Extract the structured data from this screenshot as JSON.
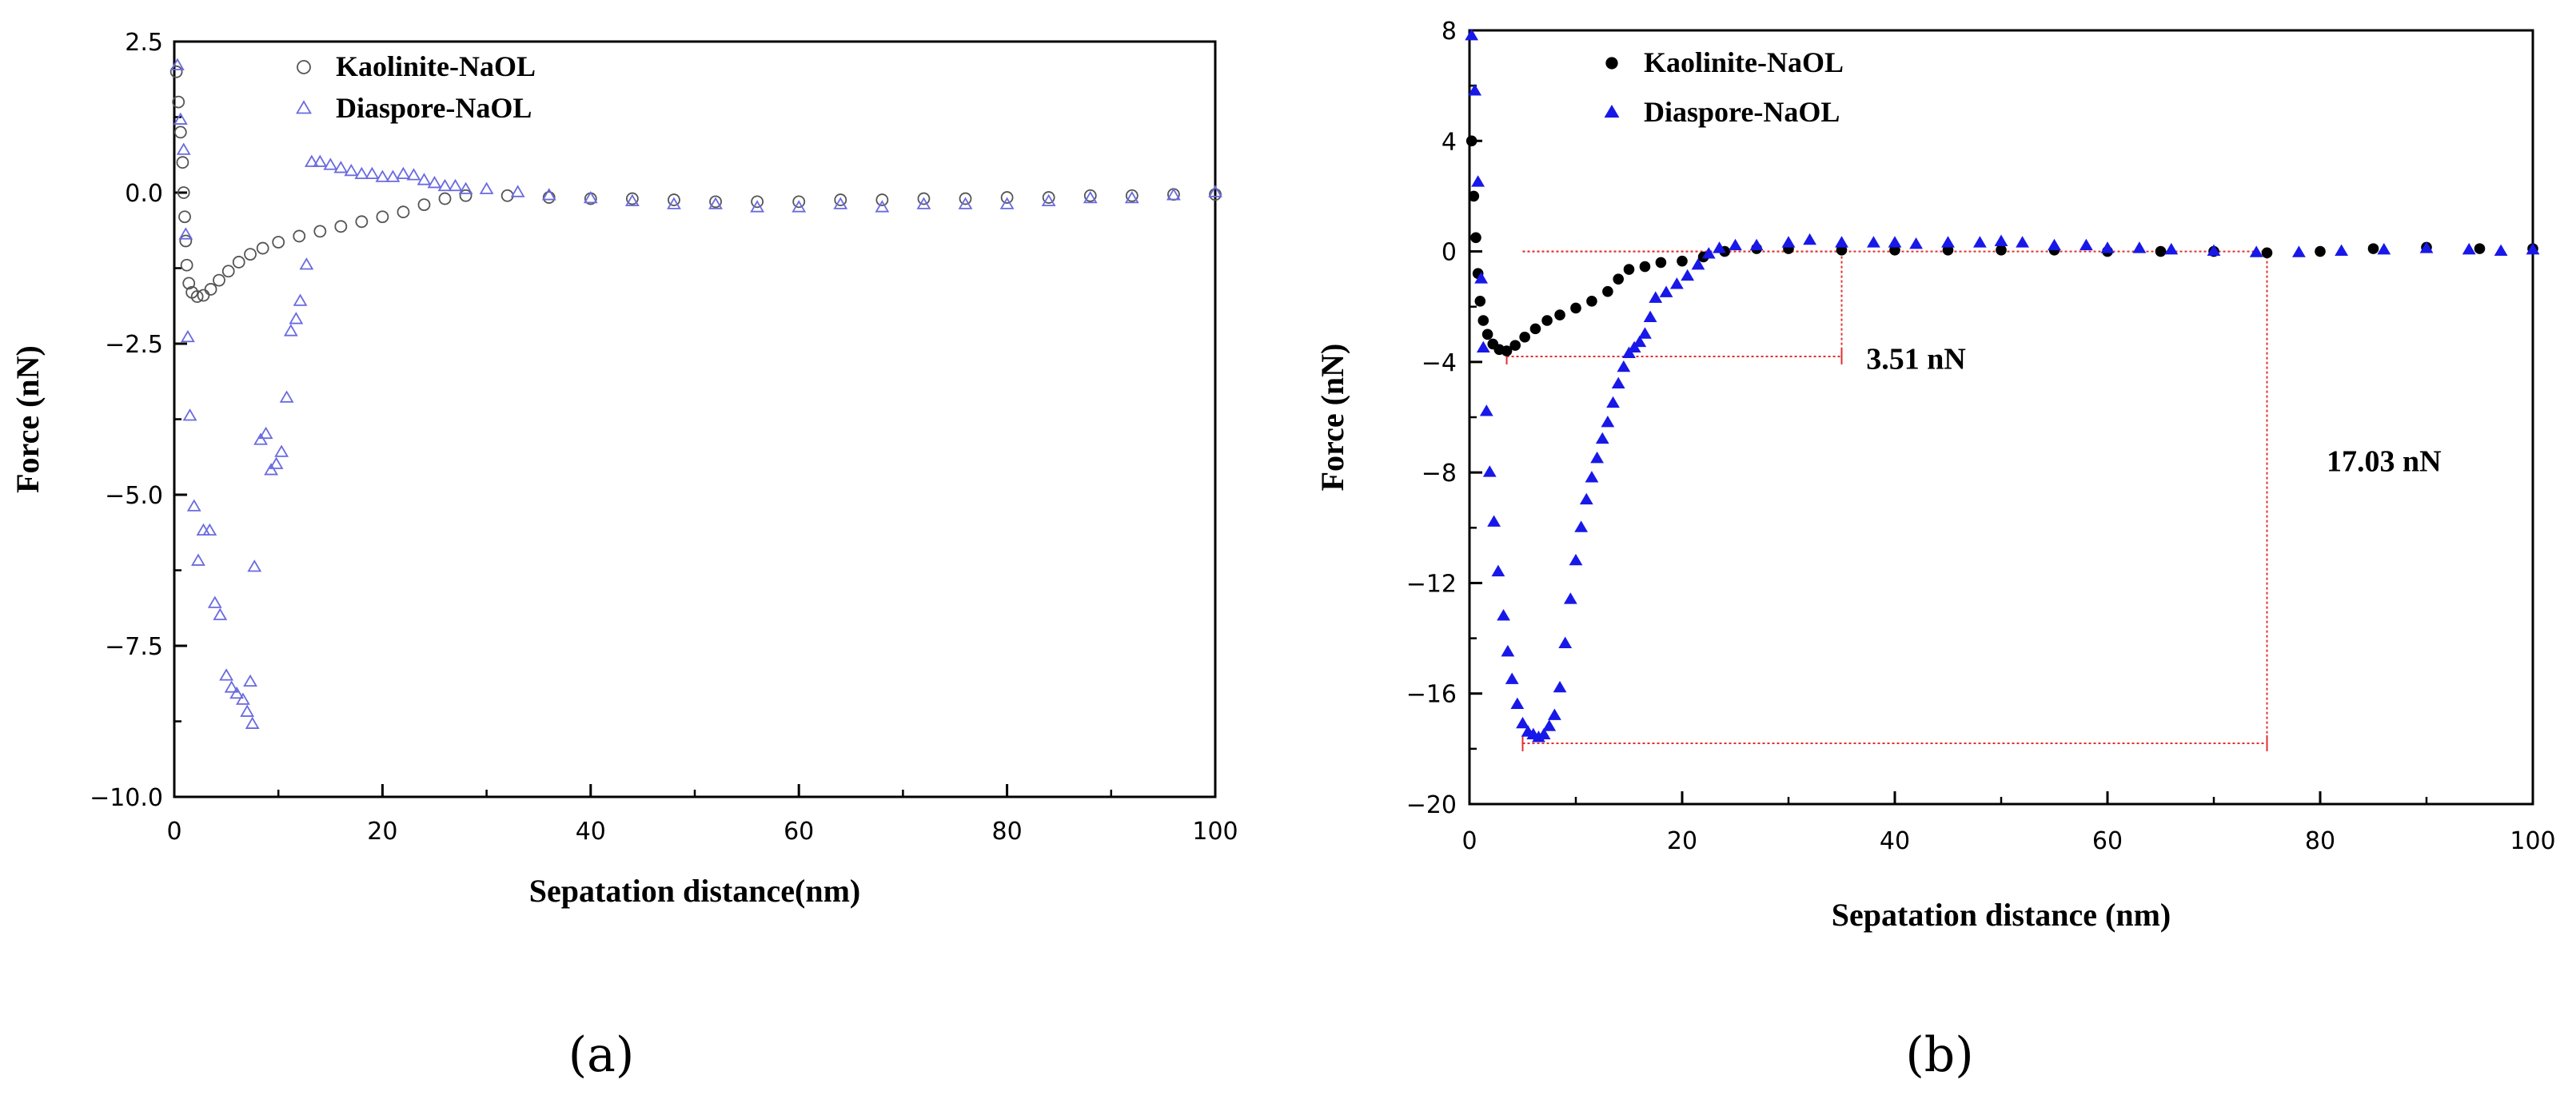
{
  "figure": {
    "panel_labels": [
      "(a)",
      "(b)"
    ]
  },
  "chart_data": [
    {
      "panel": "(a)",
      "type": "scatter",
      "title": "",
      "xlabel": "Sepatation distance(nm)",
      "ylabel": "Force (nN)",
      "xlim": [
        0,
        100
      ],
      "ylim": [
        -10,
        2.5
      ],
      "xticks": [
        0,
        20,
        40,
        60,
        80,
        100
      ],
      "xtick_labels": [
        "0",
        "20",
        "40",
        "60",
        "80",
        "100"
      ],
      "yticks": [
        2.5,
        0,
        -2.5,
        -5,
        -7.5,
        -10
      ],
      "ytick_labels": [
        "2.5",
        "0.0",
        "−2.5",
        "−5.0",
        "−7.5",
        "−10.0"
      ],
      "legend_position": "top-left",
      "series": [
        {
          "name": "Kaolinite-NaOL",
          "marker": "open-circle",
          "color": "#555555",
          "points": [
            [
              0.2,
              2.0
            ],
            [
              0.4,
              1.5
            ],
            [
              0.6,
              1.0
            ],
            [
              0.8,
              0.5
            ],
            [
              0.9,
              0.0
            ],
            [
              1.0,
              -0.4
            ],
            [
              1.1,
              -0.8
            ],
            [
              1.2,
              -1.2
            ],
            [
              1.4,
              -1.5
            ],
            [
              1.7,
              -1.65
            ],
            [
              2.2,
              -1.72
            ],
            [
              2.8,
              -1.7
            ],
            [
              3.5,
              -1.6
            ],
            [
              4.3,
              -1.45
            ],
            [
              5.2,
              -1.3
            ],
            [
              6.2,
              -1.15
            ],
            [
              7.3,
              -1.02
            ],
            [
              8.5,
              -0.92
            ],
            [
              10,
              -0.82
            ],
            [
              12,
              -0.72
            ],
            [
              14,
              -0.64
            ],
            [
              16,
              -0.56
            ],
            [
              18,
              -0.48
            ],
            [
              20,
              -0.4
            ],
            [
              22,
              -0.32
            ],
            [
              24,
              -0.2
            ],
            [
              26,
              -0.1
            ],
            [
              28,
              -0.05
            ],
            [
              32,
              -0.05
            ],
            [
              36,
              -0.08
            ],
            [
              40,
              -0.1
            ],
            [
              44,
              -0.1
            ],
            [
              48,
              -0.12
            ],
            [
              52,
              -0.15
            ],
            [
              56,
              -0.15
            ],
            [
              60,
              -0.15
            ],
            [
              64,
              -0.12
            ],
            [
              68,
              -0.12
            ],
            [
              72,
              -0.1
            ],
            [
              76,
              -0.1
            ],
            [
              80,
              -0.08
            ],
            [
              84,
              -0.08
            ],
            [
              88,
              -0.05
            ],
            [
              92,
              -0.05
            ],
            [
              96,
              -0.03
            ],
            [
              100,
              -0.03
            ]
          ]
        },
        {
          "name": "Diaspore-NaOL",
          "marker": "open-triangle",
          "color": "#6a6ae0",
          "points": [
            [
              0.3,
              2.1
            ],
            [
              0.6,
              1.2
            ],
            [
              0.9,
              0.7
            ],
            [
              1.1,
              -0.7
            ],
            [
              1.3,
              -2.4
            ],
            [
              1.5,
              -3.7
            ],
            [
              1.9,
              -5.2
            ],
            [
              2.3,
              -6.1
            ],
            [
              2.8,
              -5.6
            ],
            [
              3.4,
              -5.6
            ],
            [
              3.9,
              -6.8
            ],
            [
              4.4,
              -7.0
            ],
            [
              5.0,
              -8.0
            ],
            [
              5.5,
              -8.2
            ],
            [
              6.0,
              -8.3
            ],
            [
              6.6,
              -8.4
            ],
            [
              7.0,
              -8.6
            ],
            [
              7.5,
              -8.8
            ],
            [
              7.3,
              -8.1
            ],
            [
              7.7,
              -6.2
            ],
            [
              8.3,
              -4.1
            ],
            [
              8.8,
              -4.0
            ],
            [
              9.3,
              -4.6
            ],
            [
              9.8,
              -4.5
            ],
            [
              10.3,
              -4.3
            ],
            [
              10.8,
              -3.4
            ],
            [
              11.2,
              -2.3
            ],
            [
              11.7,
              -2.1
            ],
            [
              12.1,
              -1.8
            ],
            [
              12.7,
              -1.2
            ],
            [
              13.2,
              0.5
            ],
            [
              14,
              0.5
            ],
            [
              15,
              0.45
            ],
            [
              16,
              0.4
            ],
            [
              17,
              0.35
            ],
            [
              18,
              0.3
            ],
            [
              19,
              0.3
            ],
            [
              20,
              0.25
            ],
            [
              21,
              0.25
            ],
            [
              22,
              0.3
            ],
            [
              23,
              0.28
            ],
            [
              24,
              0.2
            ],
            [
              25,
              0.15
            ],
            [
              26,
              0.1
            ],
            [
              27,
              0.1
            ],
            [
              28,
              0.05
            ],
            [
              30,
              0.05
            ],
            [
              33,
              0.0
            ],
            [
              36,
              -0.05
            ],
            [
              40,
              -0.1
            ],
            [
              44,
              -0.15
            ],
            [
              48,
              -0.2
            ],
            [
              52,
              -0.2
            ],
            [
              56,
              -0.25
            ],
            [
              60,
              -0.25
            ],
            [
              64,
              -0.2
            ],
            [
              68,
              -0.25
            ],
            [
              72,
              -0.2
            ],
            [
              76,
              -0.2
            ],
            [
              80,
              -0.2
            ],
            [
              84,
              -0.15
            ],
            [
              88,
              -0.1
            ],
            [
              92,
              -0.1
            ],
            [
              96,
              -0.05
            ],
            [
              100,
              0.0
            ]
          ]
        }
      ]
    },
    {
      "panel": "(b)",
      "type": "scatter",
      "title": "",
      "xlabel": "Sepatation distance (nm)",
      "ylabel": "Force (nN)",
      "xlim": [
        0,
        100
      ],
      "ylim": [
        -20,
        8
      ],
      "xticks": [
        0,
        20,
        40,
        60,
        80,
        100
      ],
      "xtick_labels": [
        "0",
        "20",
        "40",
        "60",
        "80",
        "100"
      ],
      "yticks": [
        8,
        4,
        0,
        -4,
        -8,
        -12,
        -16,
        -20
      ],
      "ytick_labels": [
        "8",
        "4",
        "0",
        "−4",
        "−8",
        "−12",
        "−16",
        "−20"
      ],
      "legend_position": "top-left",
      "series": [
        {
          "name": "Kaolinite-NaOL",
          "marker": "filled-circle",
          "color": "#000000",
          "points": [
            [
              0.2,
              4.0
            ],
            [
              0.4,
              2.0
            ],
            [
              0.6,
              0.5
            ],
            [
              0.8,
              -0.8
            ],
            [
              1.0,
              -1.8
            ],
            [
              1.3,
              -2.5
            ],
            [
              1.7,
              -3.0
            ],
            [
              2.2,
              -3.35
            ],
            [
              2.8,
              -3.55
            ],
            [
              3.5,
              -3.6
            ],
            [
              4.3,
              -3.4
            ],
            [
              5.2,
              -3.1
            ],
            [
              6.2,
              -2.8
            ],
            [
              7.3,
              -2.5
            ],
            [
              8.5,
              -2.3
            ],
            [
              10,
              -2.05
            ],
            [
              11.5,
              -1.8
            ],
            [
              13,
              -1.45
            ],
            [
              14,
              -1.0
            ],
            [
              15,
              -0.65
            ],
            [
              16.5,
              -0.55
            ],
            [
              18,
              -0.4
            ],
            [
              20,
              -0.35
            ],
            [
              22,
              -0.2
            ],
            [
              24,
              0.0
            ],
            [
              27,
              0.1
            ],
            [
              30,
              0.1
            ],
            [
              35,
              0.05
            ],
            [
              40,
              0.05
            ],
            [
              45,
              0.05
            ],
            [
              50,
              0.05
            ],
            [
              55,
              0.05
            ],
            [
              60,
              0.0
            ],
            [
              65,
              0.0
            ],
            [
              70,
              0.0
            ],
            [
              75,
              -0.05
            ],
            [
              80,
              0.0
            ],
            [
              85,
              0.1
            ],
            [
              90,
              0.15
            ],
            [
              95,
              0.1
            ],
            [
              100,
              0.1
            ]
          ]
        },
        {
          "name": "Diaspore-NaOL",
          "marker": "filled-triangle",
          "color": "#1818e8",
          "points": [
            [
              0.2,
              7.8
            ],
            [
              0.5,
              5.8
            ],
            [
              0.8,
              2.5
            ],
            [
              1.1,
              -1.0
            ],
            [
              1.3,
              -3.5
            ],
            [
              1.6,
              -5.8
            ],
            [
              1.9,
              -8.0
            ],
            [
              2.3,
              -9.8
            ],
            [
              2.7,
              -11.6
            ],
            [
              3.2,
              -13.2
            ],
            [
              3.6,
              -14.5
            ],
            [
              4.0,
              -15.5
            ],
            [
              4.5,
              -16.4
            ],
            [
              5.0,
              -17.1
            ],
            [
              5.5,
              -17.4
            ],
            [
              6.0,
              -17.5
            ],
            [
              6.5,
              -17.6
            ],
            [
              7.0,
              -17.5
            ],
            [
              7.5,
              -17.2
            ],
            [
              8.0,
              -16.8
            ],
            [
              8.5,
              -15.8
            ],
            [
              9.0,
              -14.2
            ],
            [
              9.5,
              -12.6
            ],
            [
              10.0,
              -11.2
            ],
            [
              10.5,
              -10.0
            ],
            [
              11.0,
              -9.0
            ],
            [
              11.5,
              -8.2
            ],
            [
              12.0,
              -7.5
            ],
            [
              12.5,
              -6.8
            ],
            [
              13.0,
              -6.2
            ],
            [
              13.5,
              -5.5
            ],
            [
              14.0,
              -4.8
            ],
            [
              14.5,
              -4.2
            ],
            [
              15.0,
              -3.7
            ],
            [
              15.5,
              -3.5
            ],
            [
              16.0,
              -3.3
            ],
            [
              16.5,
              -3.0
            ],
            [
              17.0,
              -2.4
            ],
            [
              17.5,
              -1.7
            ],
            [
              18.5,
              -1.5
            ],
            [
              19.5,
              -1.2
            ],
            [
              20.5,
              -0.9
            ],
            [
              21.5,
              -0.5
            ],
            [
              22.5,
              -0.1
            ],
            [
              23.5,
              0.1
            ],
            [
              25,
              0.2
            ],
            [
              27,
              0.2
            ],
            [
              30,
              0.3
            ],
            [
              32,
              0.4
            ],
            [
              35,
              0.3
            ],
            [
              38,
              0.3
            ],
            [
              40,
              0.3
            ],
            [
              42,
              0.25
            ],
            [
              45,
              0.3
            ],
            [
              48,
              0.3
            ],
            [
              50,
              0.35
            ],
            [
              52,
              0.3
            ],
            [
              55,
              0.2
            ],
            [
              58,
              0.2
            ],
            [
              60,
              0.1
            ],
            [
              63,
              0.1
            ],
            [
              66,
              0.05
            ],
            [
              70,
              0.0
            ],
            [
              74,
              -0.05
            ],
            [
              78,
              -0.05
            ],
            [
              82,
              0.0
            ],
            [
              86,
              0.05
            ],
            [
              90,
              0.1
            ],
            [
              94,
              0.05
            ],
            [
              97,
              0.0
            ],
            [
              100,
              0.05
            ]
          ]
        }
      ],
      "annotations": [
        {
          "text": "3.51 nN",
          "x0": 3.5,
          "x1": 35,
          "y_top": 0,
          "y_bottom": -3.8,
          "label_x": 42,
          "label_y": -3.9,
          "color": "#e03030"
        },
        {
          "text": "17.03 nN",
          "x0": 5,
          "x1": 75,
          "y_top": 0,
          "y_bottom": -17.8,
          "label_x": 86,
          "label_y": -7.6,
          "color": "#e03030"
        }
      ]
    }
  ]
}
